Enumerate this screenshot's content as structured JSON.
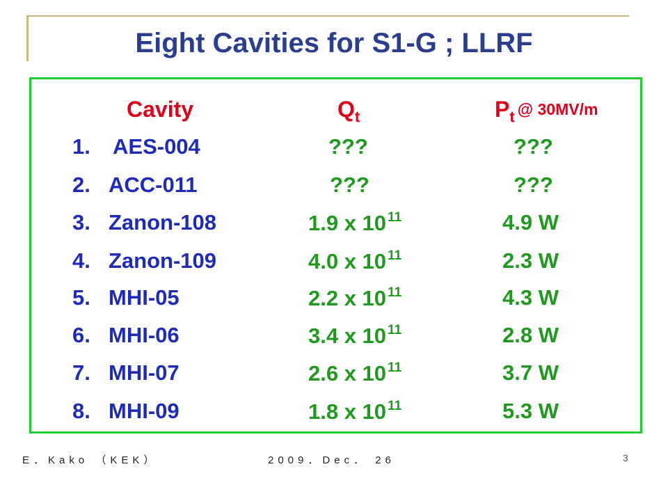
{
  "title": "Eight Cavities for S1-G ; LLRF",
  "headers": {
    "cavity": "Cavity",
    "q": "Q",
    "q_sub": "t",
    "p": "P",
    "p_sub": "t",
    "p_condition": "@ 30MV/m"
  },
  "rows": [
    {
      "num": "1.",
      "name": "AES-004",
      "q_text": "???",
      "q_mant": "",
      "q_exp": "",
      "p": "???"
    },
    {
      "num": "2.",
      "name": "ACC-011",
      "q_text": "???",
      "q_mant": "",
      "q_exp": "",
      "p": "???"
    },
    {
      "num": "3.",
      "name": "Zanon-108",
      "q_text": "",
      "q_mant": "1.9 x 10",
      "q_exp": "11",
      "p": "4.9 W"
    },
    {
      "num": "4.",
      "name": "Zanon-109",
      "q_text": "",
      "q_mant": "4.0 x 10",
      "q_exp": "11",
      "p": "2.3 W"
    },
    {
      "num": "5.",
      "name": "MHI-05",
      "q_text": "",
      "q_mant": "2.2 x 10",
      "q_exp": "11",
      "p": "4.3 W"
    },
    {
      "num": "6.",
      "name": "MHI-06",
      "q_text": "",
      "q_mant": "3.4 x 10",
      "q_exp": "11",
      "p": "2.8 W"
    },
    {
      "num": "7.",
      "name": "MHI-07",
      "q_text": "",
      "q_mant": "2.6 x 10",
      "q_exp": "11",
      "p": "3.7 W"
    },
    {
      "num": "8.",
      "name": "MHI-09",
      "q_text": "",
      "q_mant": "1.8 x 10",
      "q_exp": "11",
      "p": "5.3 W"
    }
  ],
  "footer": {
    "author": "E．Kako （KEK）",
    "date": "2009．Dec． 26",
    "page": "3"
  },
  "colors": {
    "title": "#2a3d8f",
    "header": "#e0001b",
    "names": "#1f2ab8",
    "values": "#1f9a1f",
    "border": "#22cc33",
    "accent": "#c8b878"
  }
}
